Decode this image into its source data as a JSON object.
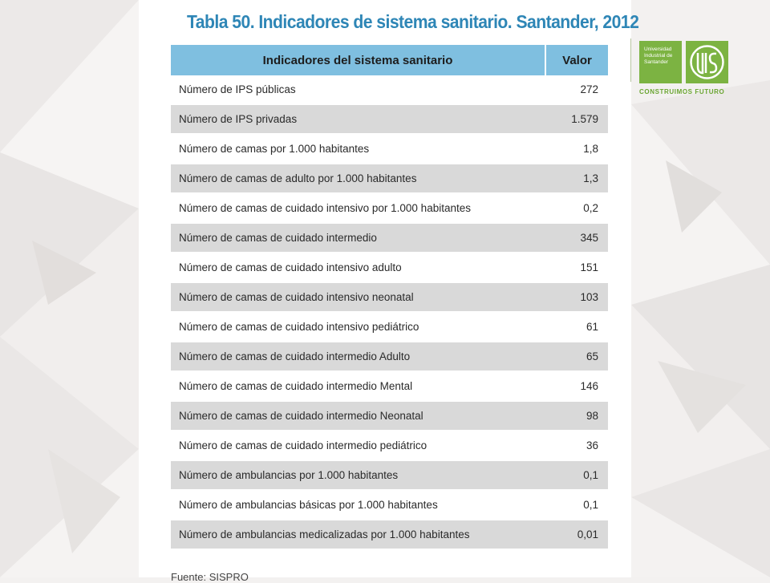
{
  "slide": {
    "title": "Tabla 50. Indicadores de sistema sanitario. Santander, 2012",
    "table": {
      "headers": [
        "Indicadores del sistema sanitario",
        "Valor"
      ],
      "rows": [
        {
          "label": "Número de IPS públicas",
          "value": "272"
        },
        {
          "label": "Número de IPS privadas",
          "value": "1.579"
        },
        {
          "label": "Número de camas por 1.000 habitantes",
          "value": "1,8"
        },
        {
          "label": "Número de camas de adulto  por 1.000 habitantes",
          "value": "1,3"
        },
        {
          "label": "Número de camas de cuidado intensivo por 1.000 habitantes",
          "value": "0,2"
        },
        {
          "label": "Número de camas de cuidado intermedio",
          "value": "345"
        },
        {
          "label": "Número de camas de cuidado intensivo adulto",
          "value": "151"
        },
        {
          "label": "Número de camas de cuidado intensivo neonatal",
          "value": "103"
        },
        {
          "label": "Número de camas de cuidado intensivo pediátrico",
          "value": "61"
        },
        {
          "label": "Número de camas de cuidado intermedio Adulto",
          "value": "65"
        },
        {
          "label": "Número de camas de cuidado intermedio Mental",
          "value": "146"
        },
        {
          "label": "Número de camas de cuidado intermedio Neonatal",
          "value": "98"
        },
        {
          "label": "Número de camas de cuidado intermedio pediátrico",
          "value": "36"
        },
        {
          "label": "Número de ambulancias por 1.000 habitantes",
          "value": "0,1"
        },
        {
          "label": "Número de ambulancias básicas por 1.000 habitantes",
          "value": "0,1"
        },
        {
          "label": "Número de ambulancias medicalizadas  por 1.000 habitantes",
          "value": "0,01"
        }
      ]
    },
    "source": "Fuente: SISPRO"
  },
  "logo": {
    "lines": [
      "Universidad",
      "Industrial de",
      "Santander"
    ],
    "tagline": "CONSTRUIMOS FUTURO",
    "emblem": "uis-emblem",
    "brand_color": "#7cb342"
  },
  "colors": {
    "title": "#2e86b6",
    "header_bg": "#7fbfe0",
    "alt_row_bg": "#d9d9d9"
  }
}
